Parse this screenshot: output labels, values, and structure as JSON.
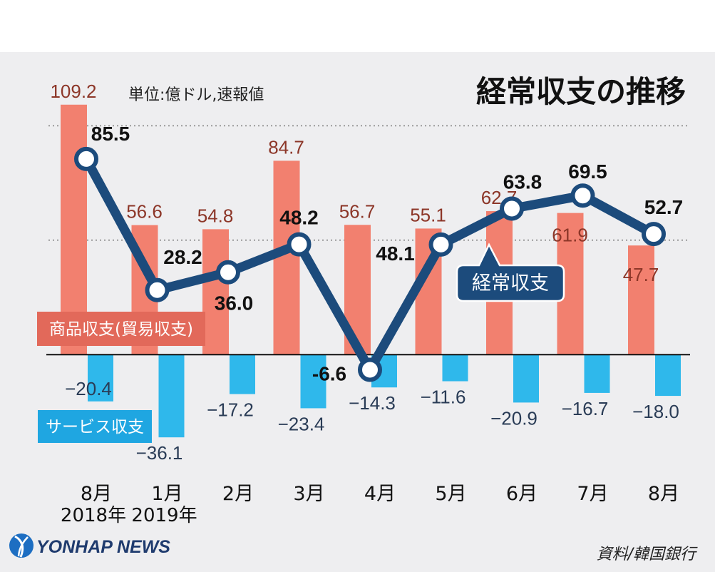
{
  "colors": {
    "panel_background": "#eeeef0",
    "zero_line": "#111111",
    "gridline": "#9a9a9a"
  },
  "branding": {
    "logo_icon": "yonhap-globe-icon",
    "logo_text": "YONHAP NEWS"
  },
  "chart_data": {
    "type": "bar",
    "title": "経常収支の推移",
    "unit_note": "単位:億ドル,速報値",
    "source": "資料/韓国銀行",
    "categories": [
      "8月",
      "1月",
      "2月",
      "3月",
      "4月",
      "5月",
      "6月",
      "7月",
      "8月"
    ],
    "category_sublabels": [
      "2018年",
      "2019年",
      "",
      "",
      "",
      "",
      "",
      "",
      ""
    ],
    "series": [
      {
        "name": "商品収支(貿易収支)",
        "type": "bar",
        "color": "#f2806f",
        "legend_color": "#e2695a",
        "label_color": "#8c3628",
        "values": [
          109.2,
          56.6,
          54.8,
          84.7,
          56.7,
          55.1,
          62.7,
          61.9,
          47.7
        ]
      },
      {
        "name": "サービス収支",
        "type": "bar",
        "color": "#2fb8eb",
        "legend_color": "#1fa6e1",
        "label_color": "#2a3c56",
        "values": [
          -20.4,
          -36.1,
          -17.2,
          -23.4,
          -14.3,
          -11.6,
          -20.9,
          -16.7,
          -18.0
        ]
      },
      {
        "name": "経常収支",
        "type": "line",
        "color": "#1c4b7c",
        "label_color": "#111111",
        "values": [
          85.5,
          28.2,
          36.0,
          48.2,
          -6.6,
          48.1,
          63.8,
          69.5,
          52.7
        ]
      }
    ],
    "ylim": [
      -40,
      130
    ],
    "grid": true,
    "grid_values": [
      50,
      100
    ],
    "legend_placement": "in-plot"
  }
}
